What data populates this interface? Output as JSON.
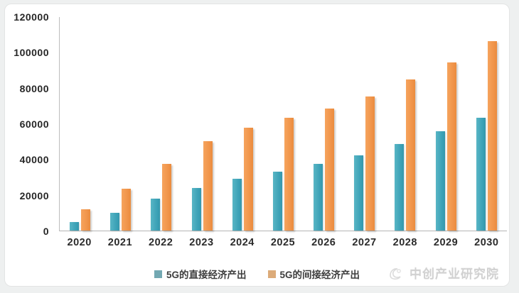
{
  "chart_data": {
    "type": "bar",
    "title": "",
    "xlabel": "",
    "ylabel": "",
    "categories": [
      "2020",
      "2021",
      "2022",
      "2023",
      "2024",
      "2025",
      "2026",
      "2027",
      "2028",
      "2029",
      "2030"
    ],
    "series": [
      {
        "name": "5G的直接经济产出",
        "color": "#3BA1B6",
        "values": [
          4800,
          10000,
          18000,
          24000,
          29000,
          33000,
          37500,
          42000,
          48500,
          55500,
          63000
        ]
      },
      {
        "name": "5G的间接经济产出",
        "color": "#F0944A",
        "values": [
          12000,
          23500,
          37500,
          50000,
          57500,
          63000,
          68500,
          75000,
          84500,
          94000,
          106000
        ]
      }
    ],
    "ylim": [
      0,
      120000
    ],
    "yticks": [
      0,
      20000,
      40000,
      60000,
      80000,
      100000,
      120000
    ],
    "grid": false,
    "legend_position": "bottom"
  },
  "legend": {
    "direct_label": "5G的直接经济产出",
    "indirect_label": "5G的间接经济产出"
  },
  "watermark": {
    "text": "中创产业研究院",
    "logo": "swoosh-logo-icon"
  },
  "colors": {
    "direct": "#3BA1B6",
    "indirect": "#F0944A",
    "axis": "#BDBDBD",
    "tick_text": "#262626",
    "watermark_text": "#CDCDCD",
    "card_background": "#FFFFFF",
    "page_background": "#EEF0F0"
  }
}
